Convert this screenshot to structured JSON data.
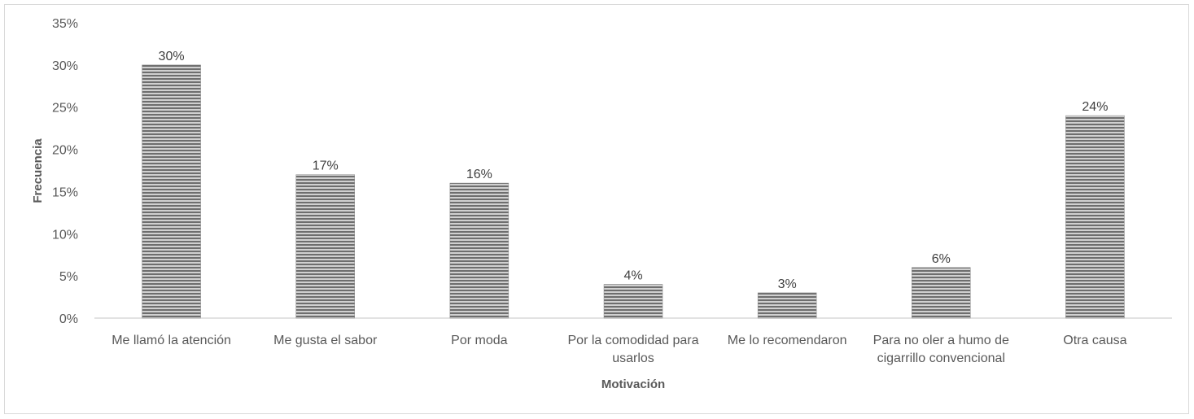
{
  "chart_data": {
    "type": "bar",
    "title": "",
    "xlabel": "Motivación",
    "ylabel": "Frecuencia",
    "ylim": [
      0,
      35
    ],
    "yticks": [
      "0%",
      "5%",
      "10%",
      "15%",
      "20%",
      "25%",
      "30%",
      "35%"
    ],
    "categories": [
      [
        "Me llamó la atención"
      ],
      [
        "Me gusta el sabor"
      ],
      [
        "Por moda"
      ],
      [
        "Por la comodidad para",
        "usarlos"
      ],
      [
        "Me lo recomendaron"
      ],
      [
        "Para no oler a humo de",
        "cigarrillo convencional"
      ],
      [
        "Otra causa"
      ]
    ],
    "values": [
      30,
      17,
      16,
      4,
      3,
      6,
      24
    ],
    "data_labels": [
      "30%",
      "17%",
      "16%",
      "4%",
      "3%",
      "6%",
      "24%"
    ],
    "grid": false,
    "bar_color": "#808080"
  }
}
